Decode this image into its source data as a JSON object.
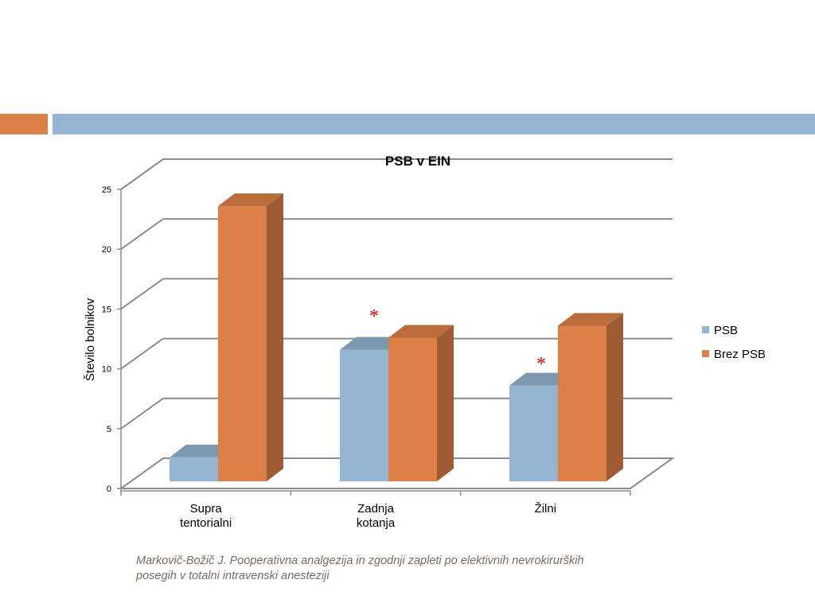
{
  "slide": {
    "accent_colors": {
      "orange": "#dd8047",
      "blue": "#94b6d2"
    },
    "citation_lines": [
      "Markovič-Božič J. Pooperativna analgezija in zgodnji zapleti po elektivnih nevrokirurških",
      "posegih v totalni intravenski anesteziji"
    ],
    "citation_color": "#7f6a5e"
  },
  "chart_data": {
    "type": "bar",
    "title": "PSB v EIN",
    "ylabel": "Število bolnikov",
    "xlabel": "",
    "ylim": [
      0,
      25
    ],
    "yticks": [
      0,
      5,
      10,
      15,
      20,
      25
    ],
    "grid": true,
    "legend_position": "right",
    "categories": [
      [
        "Supra",
        "tentorialni"
      ],
      [
        "Zadnja",
        "kotanja"
      ],
      [
        "Žilni"
      ]
    ],
    "series": [
      {
        "name": "PSB",
        "values": [
          2,
          11,
          8
        ],
        "color": "#94b6d2"
      },
      {
        "name": "Brez PSB",
        "values": [
          23,
          12,
          13
        ],
        "color": "#dd8047"
      }
    ],
    "annotations": [
      {
        "text": "*",
        "category_index": 1,
        "color": "#e00000"
      },
      {
        "text": "*",
        "category_index": 2,
        "color": "#e00000"
      }
    ]
  }
}
